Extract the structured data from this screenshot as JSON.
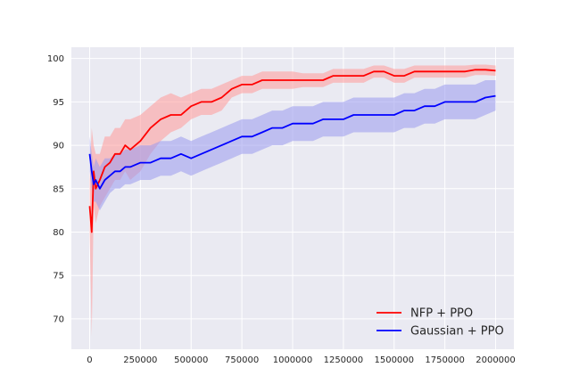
{
  "chart_data": {
    "type": "line",
    "title": "",
    "xlabel": "",
    "ylabel": "",
    "xlim": [
      -90000,
      2090000
    ],
    "ylim": [
      66.5,
      101.3
    ],
    "x_ticks": [
      0,
      250000,
      500000,
      750000,
      1000000,
      1250000,
      1500000,
      1750000,
      2000000
    ],
    "x_tick_labels": [
      "0",
      "250000",
      "500000",
      "750000",
      "1000000",
      "1250000",
      "1500000",
      "1750000",
      "2000000"
    ],
    "y_ticks": [
      70,
      75,
      80,
      85,
      90,
      95,
      100
    ],
    "y_tick_labels": [
      "70",
      "75",
      "80",
      "85",
      "90",
      "95",
      "100"
    ],
    "grid": true,
    "legend_position": "lower-right",
    "series": [
      {
        "name": "NFP + PPO",
        "color": "#ff0000",
        "band_color": "#ff9999",
        "x": [
          0,
          10000,
          20000,
          30000,
          50000,
          75000,
          100000,
          125000,
          150000,
          175000,
          200000,
          250000,
          300000,
          350000,
          400000,
          450000,
          500000,
          550000,
          600000,
          650000,
          700000,
          750000,
          800000,
          850000,
          900000,
          950000,
          1000000,
          1050000,
          1100000,
          1150000,
          1200000,
          1250000,
          1300000,
          1350000,
          1400000,
          1450000,
          1500000,
          1550000,
          1600000,
          1650000,
          1700000,
          1750000,
          1800000,
          1850000,
          1900000,
          1950000,
          2000000
        ],
        "y": [
          83,
          80,
          87,
          85,
          86,
          87.5,
          88,
          89,
          89,
          90,
          89.5,
          90.5,
          92,
          93,
          93.5,
          93.5,
          94.5,
          95,
          95,
          95.5,
          96.5,
          97,
          97,
          97.5,
          97.5,
          97.5,
          97.5,
          97.5,
          97.5,
          97.5,
          98,
          98,
          98,
          98,
          98.5,
          98.5,
          98,
          98,
          98.5,
          98.5,
          98.5,
          98.5,
          98.5,
          98.5,
          98.7,
          98.7,
          98.6
        ],
        "band": [
          [
            80,
            86
          ],
          [
            68,
            92
          ],
          [
            83,
            90
          ],
          [
            81,
            89
          ],
          [
            83,
            89
          ],
          [
            84,
            91
          ],
          [
            85,
            91
          ],
          [
            86,
            92
          ],
          [
            86,
            92
          ],
          [
            87,
            93
          ],
          [
            86,
            93
          ],
          [
            87,
            93.5
          ],
          [
            89,
            94.5
          ],
          [
            90.5,
            95.5
          ],
          [
            91.5,
            96
          ],
          [
            92,
            95.5
          ],
          [
            93,
            96
          ],
          [
            93.5,
            96.5
          ],
          [
            93.5,
            96.5
          ],
          [
            94,
            97
          ],
          [
            95.5,
            97.5
          ],
          [
            96,
            98
          ],
          [
            96,
            98
          ],
          [
            96.5,
            98.5
          ],
          [
            96.5,
            98.5
          ],
          [
            96.5,
            98.5
          ],
          [
            96.5,
            98.5
          ],
          [
            96.7,
            98.3
          ],
          [
            96.7,
            98.3
          ],
          [
            96.7,
            98.3
          ],
          [
            97.2,
            98.8
          ],
          [
            97.2,
            98.8
          ],
          [
            97.2,
            98.8
          ],
          [
            97.2,
            98.8
          ],
          [
            97.8,
            99.2
          ],
          [
            97.8,
            99.2
          ],
          [
            97.2,
            98.8
          ],
          [
            97.2,
            98.8
          ],
          [
            97.8,
            99.2
          ],
          [
            97.8,
            99.2
          ],
          [
            97.8,
            99.2
          ],
          [
            97.8,
            99.2
          ],
          [
            97.8,
            99.2
          ],
          [
            97.8,
            99.2
          ],
          [
            98.1,
            99.3
          ],
          [
            98.1,
            99.3
          ],
          [
            98,
            99.2
          ]
        ]
      },
      {
        "name": "Gaussian + PPO",
        "color": "#0000ff",
        "band_color": "#9999ee",
        "x": [
          0,
          10000,
          20000,
          30000,
          50000,
          75000,
          100000,
          125000,
          150000,
          175000,
          200000,
          250000,
          300000,
          350000,
          400000,
          450000,
          500000,
          550000,
          600000,
          650000,
          700000,
          750000,
          800000,
          850000,
          900000,
          950000,
          1000000,
          1050000,
          1100000,
          1150000,
          1200000,
          1250000,
          1300000,
          1350000,
          1400000,
          1450000,
          1500000,
          1550000,
          1600000,
          1650000,
          1700000,
          1750000,
          1800000,
          1850000,
          1900000,
          1950000,
          2000000
        ],
        "y": [
          89,
          87,
          85.5,
          86,
          85,
          86,
          86.5,
          87,
          87,
          87.5,
          87.5,
          88,
          88,
          88.5,
          88.5,
          89,
          88.5,
          89,
          89.5,
          90,
          90.5,
          91,
          91,
          91.5,
          92,
          92,
          92.5,
          92.5,
          92.5,
          93,
          93,
          93,
          93.5,
          93.5,
          93.5,
          93.5,
          93.5,
          94,
          94,
          94.5,
          94.5,
          95,
          95,
          95,
          95,
          95.5,
          95.7
        ],
        "band": [
          [
            87,
            91
          ],
          [
            85,
            89
          ],
          [
            83.5,
            87.5
          ],
          [
            83.5,
            88.5
          ],
          [
            82.5,
            87.5
          ],
          [
            83.5,
            88.5
          ],
          [
            84.5,
            88.5
          ],
          [
            85,
            89
          ],
          [
            85,
            89
          ],
          [
            85.5,
            89.5
          ],
          [
            85.5,
            89.5
          ],
          [
            86,
            90
          ],
          [
            86,
            90
          ],
          [
            86.5,
            90.5
          ],
          [
            86.5,
            90.5
          ],
          [
            87,
            91
          ],
          [
            86.5,
            90.5
          ],
          [
            87,
            91
          ],
          [
            87.5,
            91.5
          ],
          [
            88,
            92
          ],
          [
            88.5,
            92.5
          ],
          [
            89,
            93
          ],
          [
            89,
            93
          ],
          [
            89.5,
            93.5
          ],
          [
            90,
            94
          ],
          [
            90,
            94
          ],
          [
            90.5,
            94.5
          ],
          [
            90.5,
            94.5
          ],
          [
            90.5,
            94.5
          ],
          [
            91,
            95
          ],
          [
            91,
            95
          ],
          [
            91,
            95
          ],
          [
            91.5,
            95.5
          ],
          [
            91.5,
            95.5
          ],
          [
            91.5,
            95.5
          ],
          [
            91.5,
            95.5
          ],
          [
            91.5,
            95.5
          ],
          [
            92,
            96
          ],
          [
            92,
            96
          ],
          [
            92.5,
            96.5
          ],
          [
            92.5,
            96.5
          ],
          [
            93,
            97
          ],
          [
            93,
            97
          ],
          [
            93,
            97
          ],
          [
            93,
            97
          ],
          [
            93.5,
            97.5
          ],
          [
            94,
            97.5
          ]
        ]
      }
    ]
  }
}
